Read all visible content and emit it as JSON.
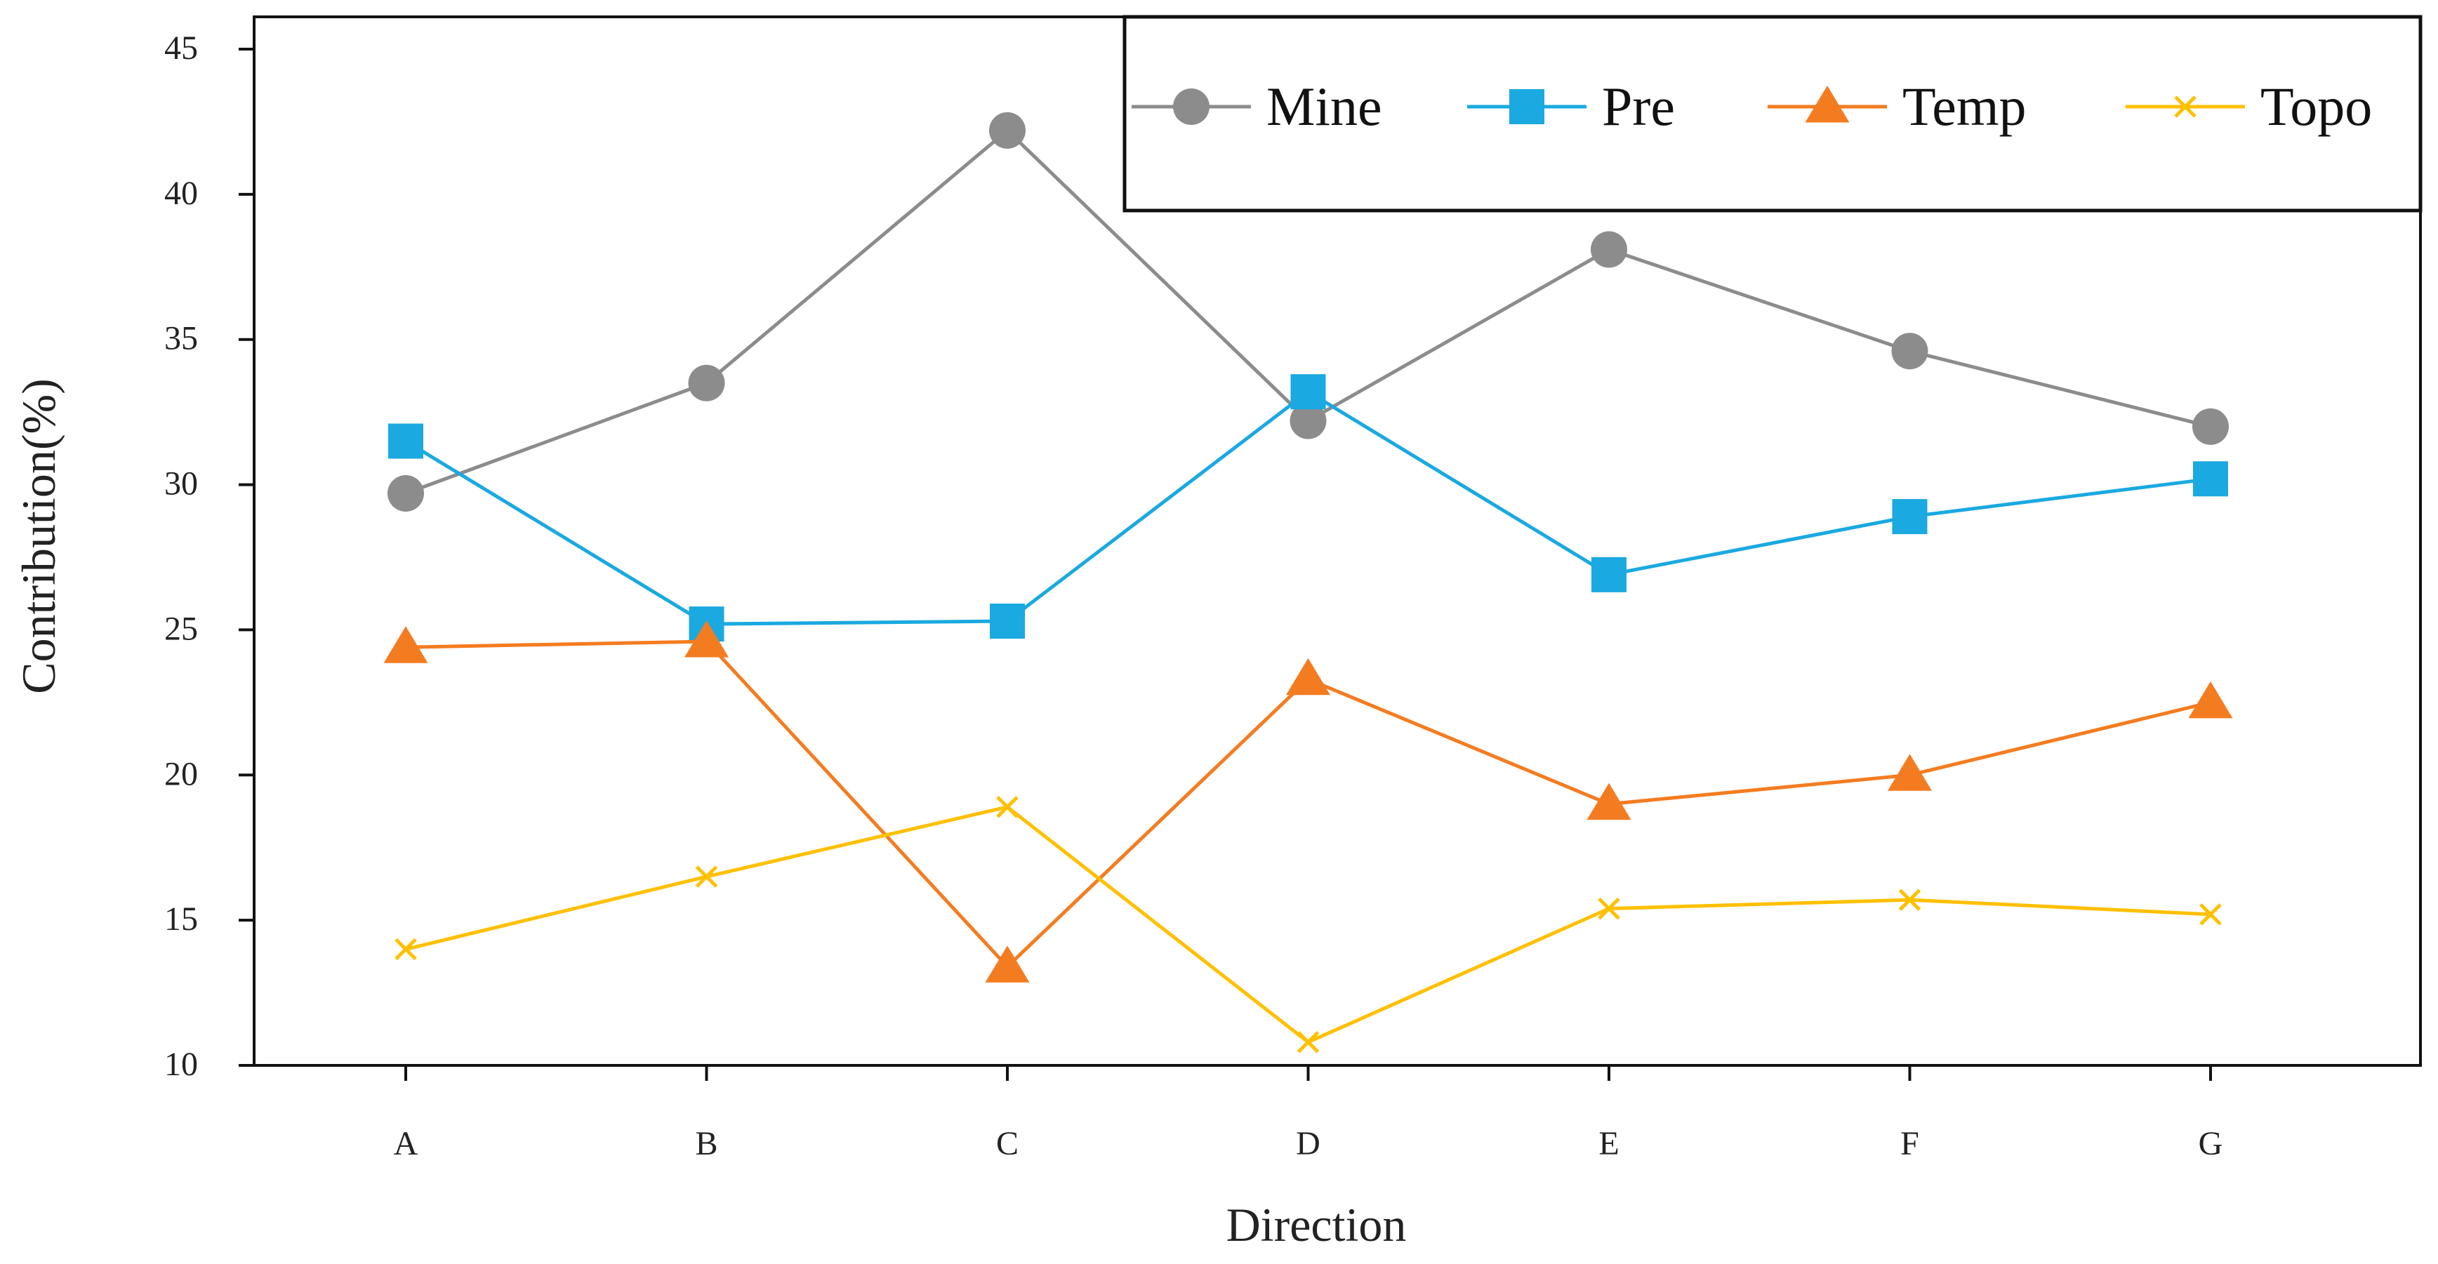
{
  "chart_data": {
    "type": "line",
    "title": "",
    "xlabel": "Direction",
    "ylabel": "Contribution(%)",
    "categories": [
      "A",
      "B",
      "C",
      "D",
      "E",
      "F",
      "G"
    ],
    "ylim": [
      10,
      45
    ],
    "yticks": [
      "10",
      "15",
      "20",
      "25",
      "30",
      "35",
      "40",
      "45"
    ],
    "grid": false,
    "legend_position": "top-right",
    "series": [
      {
        "name": "Mine",
        "marker": "circle",
        "color": "#8c8c8c",
        "values": [
          29.7,
          33.5,
          42.2,
          32.2,
          38.1,
          34.6,
          32.0
        ]
      },
      {
        "name": "Pre",
        "marker": "square",
        "color": "#1aa9e0",
        "values": [
          31.5,
          25.2,
          25.3,
          33.2,
          26.9,
          28.9,
          30.2
        ]
      },
      {
        "name": "Temp",
        "marker": "triangle",
        "color": "#f47c20",
        "values": [
          24.4,
          24.6,
          13.4,
          23.3,
          19.0,
          20.0,
          22.5
        ]
      },
      {
        "name": "Topo",
        "marker": "cross",
        "color": "#ffc000",
        "values": [
          14.0,
          16.5,
          18.9,
          10.8,
          15.4,
          15.7,
          15.2
        ]
      }
    ]
  }
}
